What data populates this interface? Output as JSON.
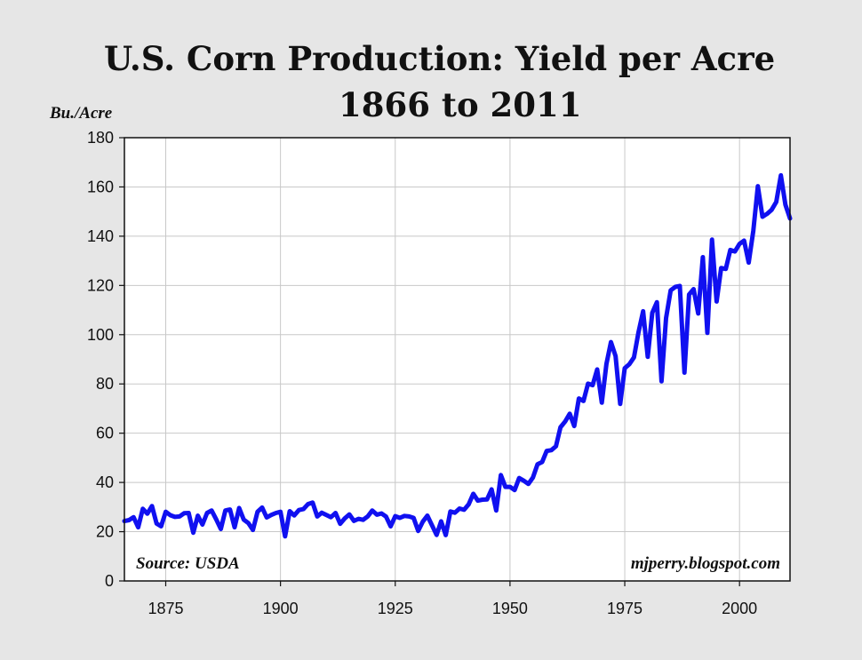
{
  "chart_data": {
    "type": "line",
    "title": "U.S. Corn Production: Yield per Acre",
    "subtitle": "1866 to 2011",
    "ylabel": "Bu./Acre",
    "xlabel": "",
    "xlim": [
      1866,
      2011
    ],
    "ylim": [
      0,
      180
    ],
    "xticks": [
      1875,
      1900,
      1925,
      1950,
      1975,
      2000
    ],
    "yticks": [
      0,
      20,
      40,
      60,
      80,
      100,
      120,
      140,
      160,
      180
    ],
    "grid": true,
    "legend": "none",
    "annotations": {
      "source": "Source: USDA",
      "credit": "mjperry.blogspot.com"
    },
    "series": [
      {
        "color": "#1010f0",
        "x": [
          1866,
          1867,
          1868,
          1869,
          1870,
          1871,
          1872,
          1873,
          1874,
          1875,
          1876,
          1877,
          1878,
          1879,
          1880,
          1881,
          1882,
          1883,
          1884,
          1885,
          1886,
          1887,
          1888,
          1889,
          1890,
          1891,
          1892,
          1893,
          1894,
          1895,
          1896,
          1897,
          1898,
          1899,
          1900,
          1901,
          1902,
          1903,
          1904,
          1905,
          1906,
          1907,
          1908,
          1909,
          1910,
          1911,
          1912,
          1913,
          1914,
          1915,
          1916,
          1917,
          1918,
          1919,
          1920,
          1921,
          1922,
          1923,
          1924,
          1925,
          1926,
          1927,
          1928,
          1929,
          1930,
          1931,
          1932,
          1933,
          1934,
          1935,
          1936,
          1937,
          1938,
          1939,
          1940,
          1941,
          1942,
          1943,
          1944,
          1945,
          1946,
          1947,
          1948,
          1949,
          1950,
          1951,
          1952,
          1953,
          1954,
          1955,
          1956,
          1957,
          1958,
          1959,
          1960,
          1961,
          1962,
          1963,
          1964,
          1965,
          1966,
          1967,
          1968,
          1969,
          1970,
          1971,
          1972,
          1973,
          1974,
          1975,
          1976,
          1977,
          1978,
          1979,
          1980,
          1981,
          1982,
          1983,
          1984,
          1985,
          1986,
          1987,
          1988,
          1989,
          1990,
          1991,
          1992,
          1993,
          1994,
          1995,
          1996,
          1997,
          1998,
          1999,
          2000,
          2001,
          2002,
          2003,
          2004,
          2005,
          2006,
          2007,
          2008,
          2009,
          2010,
          2011
        ],
        "values": [
          24.3,
          24.7,
          25.9,
          21.8,
          29.3,
          27.3,
          30.4,
          23.3,
          22.2,
          28.1,
          26.7,
          26.0,
          26.2,
          27.5,
          27.6,
          19.6,
          26.5,
          22.9,
          27.6,
          28.6,
          25.0,
          21.1,
          28.6,
          29.0,
          21.8,
          29.6,
          24.9,
          23.5,
          20.7,
          28.1,
          29.8,
          25.8,
          26.8,
          27.6,
          28.1,
          18.1,
          28.3,
          26.6,
          28.8,
          29.2,
          31.2,
          31.8,
          26.2,
          27.7,
          26.8,
          25.9,
          27.6,
          23.2,
          25.4,
          27.0,
          24.4,
          25.2,
          24.8,
          26.2,
          28.6,
          26.9,
          27.4,
          26.1,
          22.2,
          26.3,
          25.6,
          26.4,
          26.2,
          25.6,
          20.3,
          24.1,
          26.5,
          22.6,
          18.7,
          24.2,
          18.6,
          28.2,
          27.7,
          29.4,
          28.9,
          31.1,
          35.4,
          32.6,
          33.0,
          33.1,
          37.2,
          28.6,
          43.0,
          38.2,
          38.2,
          36.9,
          41.8,
          40.7,
          39.4,
          42.0,
          47.4,
          48.3,
          52.8,
          53.1,
          54.7,
          62.4,
          64.7,
          67.9,
          62.9,
          74.1,
          73.1,
          80.1,
          79.5,
          85.9,
          72.4,
          88.1,
          97.0,
          91.3,
          71.9,
          86.4,
          88.0,
          90.8,
          101.0,
          109.5,
          91.0,
          108.9,
          113.2,
          81.1,
          106.7,
          118.0,
          119.4,
          119.8,
          84.6,
          116.3,
          118.5,
          108.6,
          131.5,
          100.7,
          138.6,
          113.5,
          127.1,
          126.7,
          134.4,
          133.8,
          136.9,
          138.2,
          129.3,
          142.2,
          160.3,
          147.9,
          149.1,
          150.7,
          153.9,
          164.7,
          152.8,
          147.2
        ]
      }
    ]
  }
}
